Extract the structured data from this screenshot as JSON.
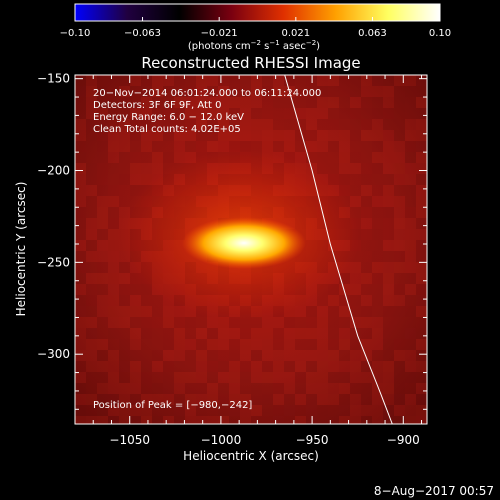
{
  "chart_data": {
    "type": "heatmap",
    "title": "Reconstructed RHESSI Image",
    "xlabel": "Heliocentric X (arcsec)",
    "ylabel": "Heliocentric Y (arcsec)",
    "xlim": [
      -1080,
      -887
    ],
    "ylim": [
      -338,
      -148
    ],
    "xticks": [
      -1050,
      -1000,
      -950,
      -900
    ],
    "xtick_labels": [
      "−1050",
      "−1000",
      "−950",
      "−900"
    ],
    "yticks": [
      -150,
      -200,
      -250,
      -300
    ],
    "ytick_labels": [
      "−150",
      "−200",
      "−250",
      "−300"
    ],
    "colorbar": {
      "min": -0.1,
      "max": 0.1,
      "ticks": [
        -0.1,
        -0.063,
        -0.021,
        0.021,
        0.063,
        0.1
      ],
      "tick_labels": [
        "−0.10",
        "−0.063",
        "−0.021",
        "0.021",
        "0.063",
        "0.10"
      ],
      "units_text": "(photons cm",
      "units_sup1": "−2",
      "units_mid1": " s",
      "units_sup2": "−1",
      "units_mid2": " asec",
      "units_sup3": "−2",
      "units_end": ")",
      "colormap": [
        "#0000ff",
        "#200040",
        "#000000",
        "#7a0010",
        "#e03000",
        "#ffa000",
        "#ffff60",
        "#ffffff"
      ]
    },
    "info_lines": [
      "20−Nov−2014 06:01:24.000 to 06:11:24.000",
      "Detectors: 3F 6F 9F, Att 0",
      "Energy Range: 6.0 − 12.0 keV",
      "Clean    Total counts: 4.02E+05"
    ],
    "peak_text": "Position of Peak = [−980,−242]",
    "peak": [
      -980,
      -242
    ],
    "limb": [
      [
        -965,
        -148
      ],
      [
        -950,
        -200
      ],
      [
        -940,
        -240
      ],
      [
        -925,
        -290
      ],
      [
        -913,
        -320
      ],
      [
        -906,
        -338
      ]
    ]
  },
  "footer": {
    "date": "8−Aug−2017 00:57"
  }
}
